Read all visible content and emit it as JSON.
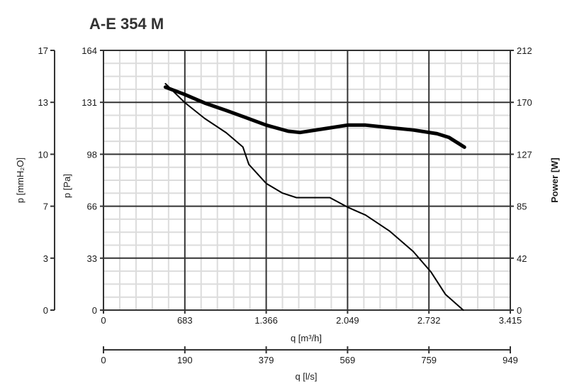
{
  "chart_data": {
    "type": "line",
    "title": "A-E 354 M",
    "xlabel": "q [m³/h]",
    "x2label": "q [l/s]",
    "ylabel_pa": "p [Pa]",
    "ylabel_mmh2o": "p [mmH₂O]",
    "ylabel_power": "Power [W]",
    "xlim": [
      0,
      3415
    ],
    "x_ticks": [
      "0",
      "683",
      "1.366",
      "2.049",
      "2.732",
      "3.415"
    ],
    "x2_ticks": [
      "0",
      "190",
      "379",
      "569",
      "759",
      "949"
    ],
    "ylim_pa": [
      0,
      164
    ],
    "y_ticks_pa": [
      "0",
      "33",
      "66",
      "98",
      "131",
      "164"
    ],
    "y_ticks_mmh2o": [
      "0",
      "3",
      "7",
      "10",
      "13",
      "17"
    ],
    "ylim_power": [
      0,
      212
    ],
    "y_ticks_power": [
      "0",
      "42",
      "85",
      "127",
      "170",
      "212"
    ],
    "grid": true,
    "series": [
      {
        "axis": "pressure",
        "unit": "Pa",
        "points": [
          [
            520,
            143
          ],
          [
            683,
            131
          ],
          [
            850,
            121
          ],
          [
            1030,
            112
          ],
          [
            1170,
            103
          ],
          [
            1220,
            92
          ],
          [
            1366,
            80
          ],
          [
            1500,
            74
          ],
          [
            1620,
            71
          ],
          [
            1800,
            71
          ],
          [
            1900,
            71
          ],
          [
            2049,
            65
          ],
          [
            2200,
            60
          ],
          [
            2400,
            50
          ],
          [
            2600,
            37
          ],
          [
            2750,
            24
          ],
          [
            2870,
            10
          ],
          [
            3020,
            0
          ]
        ]
      },
      {
        "axis": "power",
        "unit": "W",
        "points": [
          [
            520,
            182
          ],
          [
            683,
            176
          ],
          [
            850,
            169
          ],
          [
            1030,
            163
          ],
          [
            1170,
            158
          ],
          [
            1366,
            151
          ],
          [
            1550,
            146
          ],
          [
            1650,
            145
          ],
          [
            1850,
            148
          ],
          [
            2049,
            151
          ],
          [
            2200,
            151
          ],
          [
            2400,
            149
          ],
          [
            2600,
            147
          ],
          [
            2800,
            144
          ],
          [
            2900,
            141
          ],
          [
            3030,
            133
          ]
        ]
      }
    ]
  }
}
